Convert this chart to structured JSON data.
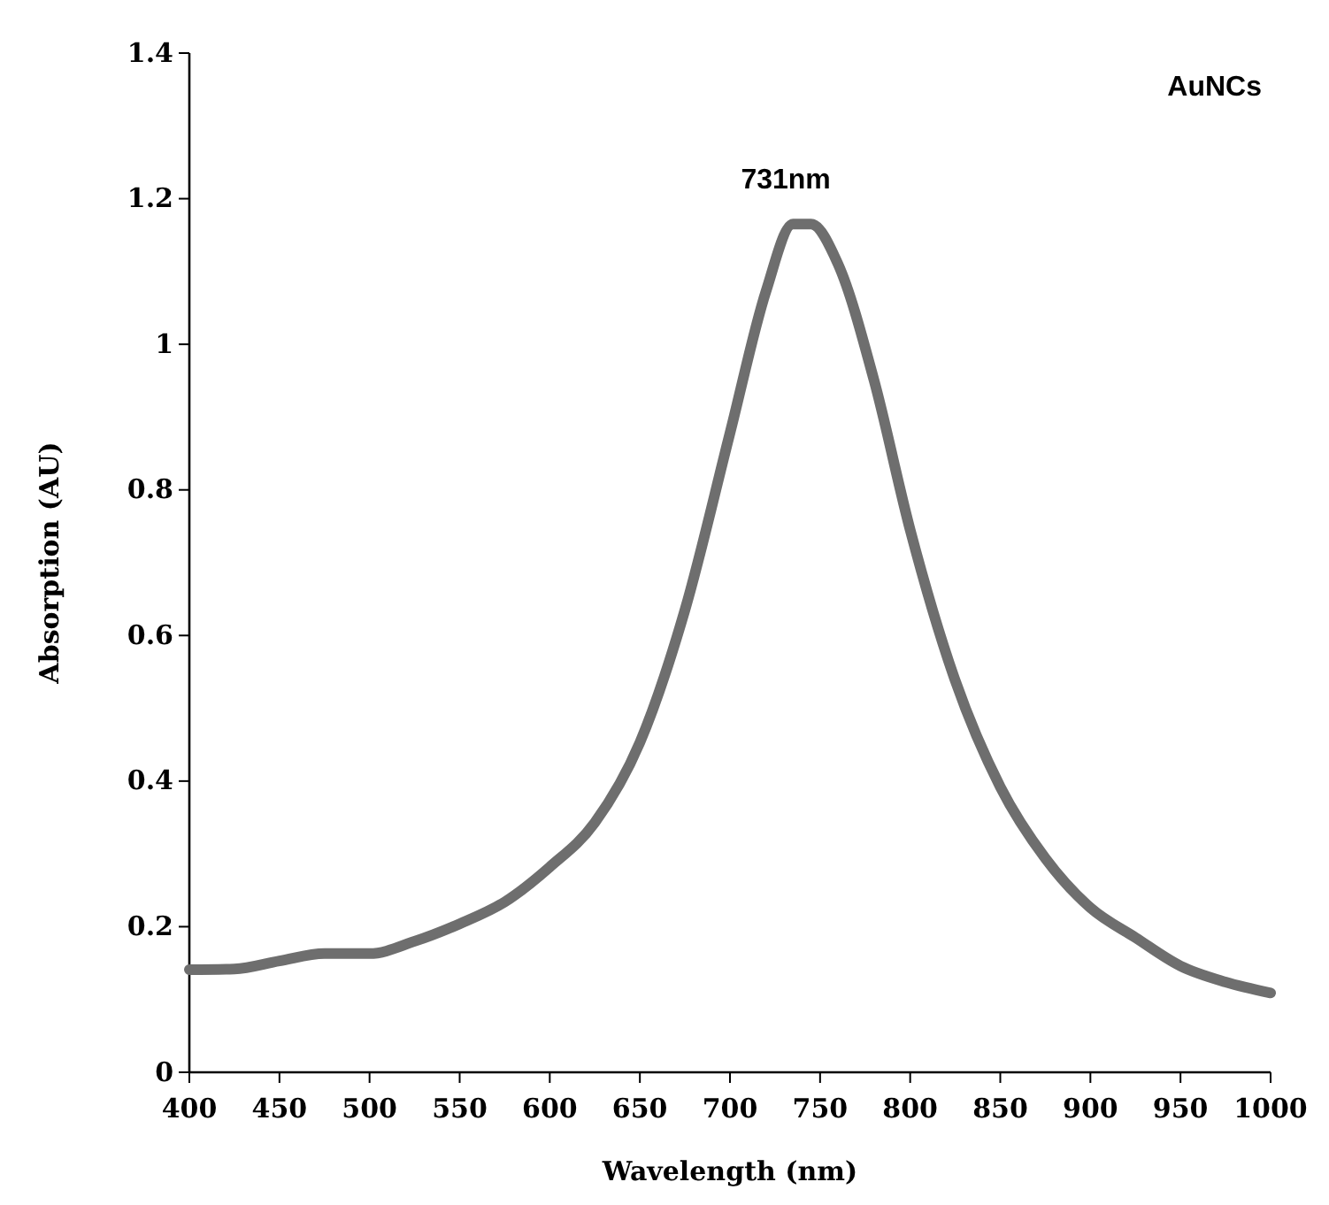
{
  "chart_data": {
    "type": "line",
    "xlabel": "Wavelength (nm)",
    "ylabel": "Absorption (AU)",
    "x": [
      400,
      425,
      450,
      475,
      500,
      525,
      550,
      575,
      600,
      625,
      650,
      675,
      700,
      720,
      735,
      745,
      760,
      780,
      800,
      825,
      850,
      875,
      900,
      925,
      950,
      975,
      1000
    ],
    "values": [
      0.141,
      0.142,
      0.153,
      0.163,
      0.163,
      0.18,
      0.204,
      0.234,
      0.282,
      0.343,
      0.453,
      0.635,
      0.878,
      1.073,
      1.165,
      1.165,
      1.11,
      0.95,
      0.745,
      0.538,
      0.392,
      0.294,
      0.226,
      0.185,
      0.146,
      0.124,
      0.109
    ],
    "color": "#6e6e6e",
    "xlim": [
      400,
      1000
    ],
    "xticks": [
      400,
      450,
      500,
      550,
      600,
      650,
      700,
      750,
      800,
      850,
      900,
      950,
      1000
    ],
    "ylim": [
      0,
      1.4
    ],
    "yticks": [
      0,
      0.2,
      0.4,
      0.6,
      0.8,
      1,
      1.2,
      1.4
    ],
    "annotations": [
      {
        "text": "731nm",
        "x": 731,
        "y": 1.17
      },
      "AuNCs"
    ]
  }
}
